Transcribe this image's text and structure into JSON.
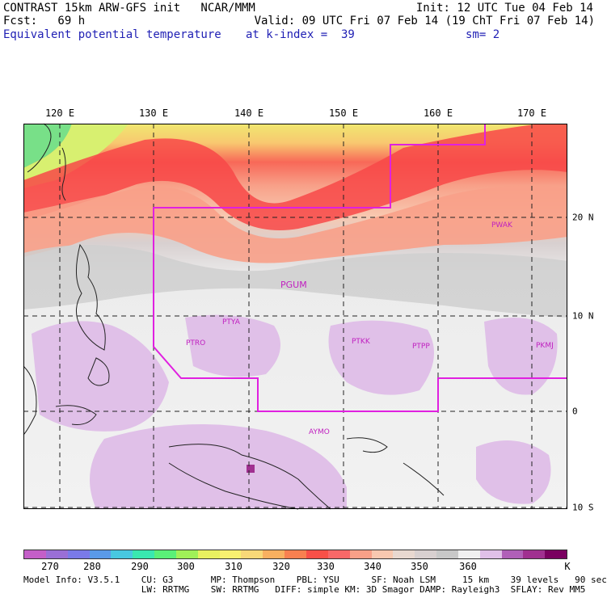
{
  "header": {
    "title": "CONTRAST 15km ARW-GFS init   NCAR/MMM",
    "init": "Init: 12 UTC Tue 04 Feb 14",
    "fcst": "Fcst:   69 h",
    "valid": "Valid: 09 UTC Fri 07 Feb 14 (19 ChT Fri 07 Feb 14)",
    "field": "Equivalent potential temperature",
    "kindex": "at k-index =  39",
    "sm": "sm= 2"
  },
  "axes": {
    "lon_labels": [
      "120 E",
      "130 E",
      "140 E",
      "150 E",
      "160 E",
      "170 E"
    ],
    "lat_labels": [
      "20 N",
      "10 N",
      "0",
      "10 S"
    ]
  },
  "stations": [
    "PWAK",
    "PGUM",
    "PTYA",
    "PTRO",
    "PTKK",
    "PTPP",
    "PKMJ",
    "AYMO"
  ],
  "colorbar": {
    "colors": [
      "#c45fc8",
      "#9a6fd6",
      "#7a7ae8",
      "#5a9ae8",
      "#48c8e0",
      "#3ae8b0",
      "#5af078",
      "#a0f058",
      "#e8f060",
      "#f8f070",
      "#f8d878",
      "#f8b060",
      "#f88050",
      "#f85048",
      "#f86868",
      "#f8a088",
      "#f8c8b0",
      "#e8d8d0",
      "#d8d0d0",
      "#c8c8c8",
      "#f0f0f0",
      "#e0c0e8",
      "#b060b8",
      "#a03090",
      "#7a0060"
    ],
    "labels": [
      "270",
      "280",
      "290",
      "300",
      "310",
      "320",
      "330",
      "340",
      "350",
      "360",
      "K"
    ]
  },
  "info": {
    "line1": "Model Info: V3.5.1    CU: G3       MP: Thompson    PBL: YSU      SF: Noah LSM     15 km    39 levels   90 sec",
    "line2": "                      LW: RRTMG    SW: RRTMG   DIFF: simple KM: 3D Smagor DAMP: Rayleigh3  SFLAY: Rev MM5"
  }
}
